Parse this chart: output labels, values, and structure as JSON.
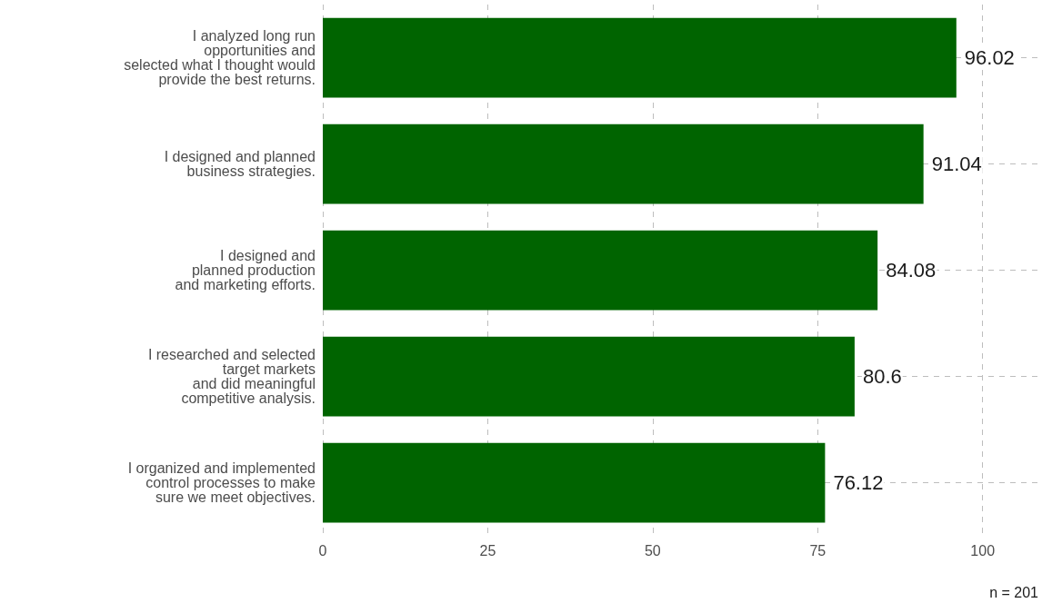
{
  "chart_data": {
    "type": "bar",
    "orientation": "horizontal",
    "categories": [
      "I analyzed long run\nopportunities and\nselected what I thought would\nprovide the best returns.",
      "I designed and planned\nbusiness strategies.",
      "I designed and\nplanned production\nand marketing efforts.",
      "I researched and selected\ntarget markets\nand did meaningful\ncompetitive analysis.",
      "I organized and implemented\ncontrol processes to make\nsure we meet objectives."
    ],
    "values": [
      96.02,
      91.04,
      84.08,
      80.6,
      76.12
    ],
    "color": "#006400",
    "xlim": [
      0,
      109
    ],
    "xticks": [
      0,
      25,
      50,
      75,
      100
    ],
    "grid": true,
    "data_labels": true,
    "annotations": [
      "n = 201"
    ]
  }
}
